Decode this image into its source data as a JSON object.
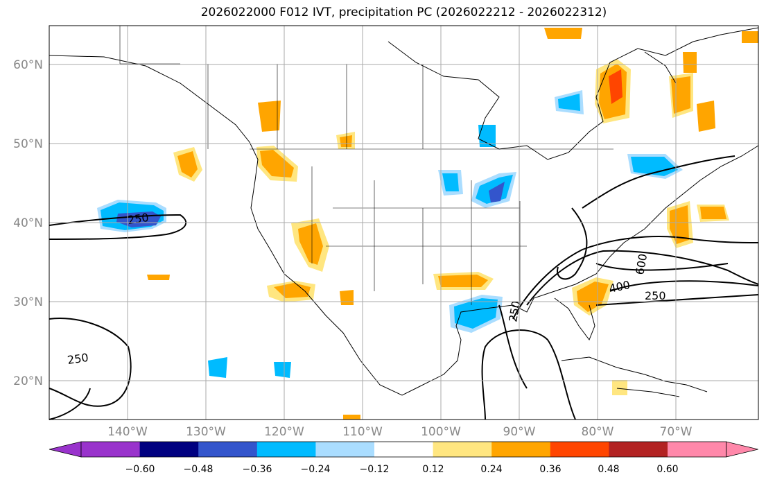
{
  "title": "2026022000 F012 IVT, precipitation PC (2026022212 - 2026022312)",
  "map": {
    "lat_labels": [
      "60°N",
      "50°N",
      "40°N",
      "30°N",
      "20°N"
    ],
    "lon_labels": [
      "140°W",
      "130°W",
      "120°W",
      "110°W",
      "100°W",
      "90°W",
      "80°W",
      "70°W"
    ],
    "contour_labels": [
      "250",
      "250",
      "250",
      "250",
      "400",
      "600"
    ],
    "grid_color": "#aaaaaa"
  },
  "colorbar": {
    "ticks": [
      "−0.60",
      "−0.48",
      "−0.36",
      "−0.24",
      "−0.12",
      "0.12",
      "0.24",
      "0.36",
      "0.48",
      "0.60"
    ],
    "colors": [
      "#9933cc",
      "#000080",
      "#3355cc",
      "#00bbff",
      "#aaddff",
      "#ffffff",
      "#ffe680",
      "#ffa500",
      "#ff4500",
      "#b22222",
      "#ff88aa"
    ]
  }
}
